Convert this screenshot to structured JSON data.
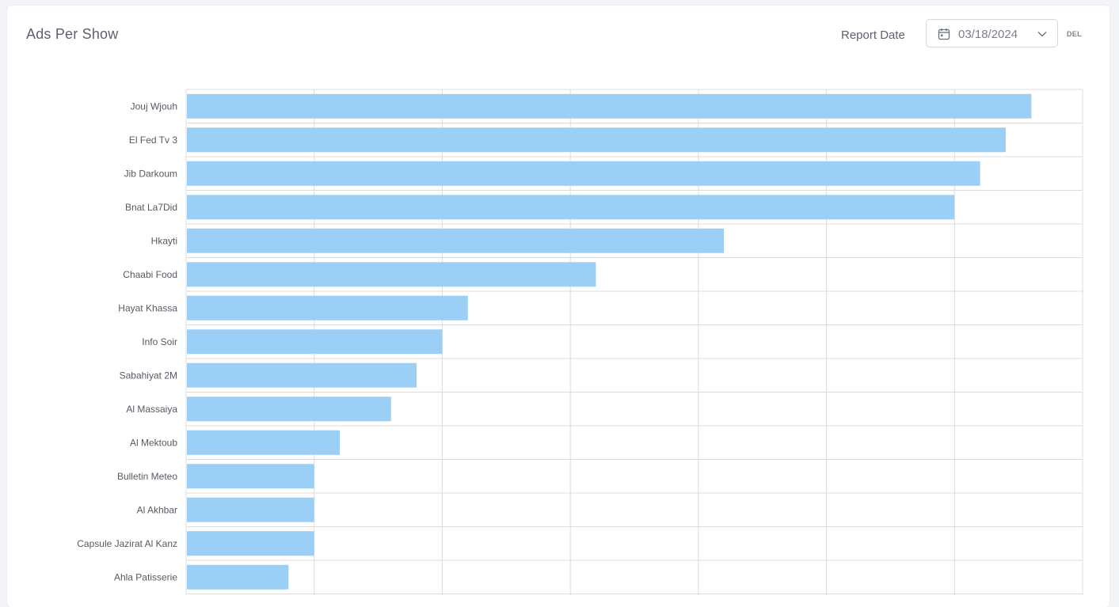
{
  "header": {
    "title": "Ads Per Show",
    "report_date_label": "Report Date",
    "date_value": "03/18/2024",
    "del_label": "DEL",
    "calendar_icon": "calendar-icon",
    "dropdown_icon": "chevron-down-icon"
  },
  "colors": {
    "bar": "#9bcff5",
    "grid": "#dcdcdc"
  },
  "chart_data": {
    "type": "bar",
    "orientation": "horizontal",
    "title": "Ads Per Show",
    "xlabel": "",
    "ylabel": "",
    "xlim": [
      0,
      35
    ],
    "grid": true,
    "categories": [
      "Jouj Wjouh",
      "El Fed Tv 3",
      "Jib Darkoum",
      "Bnat La7Did",
      "Hkayti",
      "Chaabi Food",
      "Hayat Khassa",
      "Info Soir",
      "Sabahiyat 2M",
      "Al Massaiya",
      "Al Mektoub",
      "Bulletin Meteo",
      "Al Akhbar",
      "Capsule Jazirat Al Kanz",
      "Ahla Patisserie"
    ],
    "values": [
      33,
      32,
      31,
      30,
      21,
      16,
      11,
      10,
      9,
      8,
      6,
      5,
      5,
      5,
      4
    ]
  }
}
